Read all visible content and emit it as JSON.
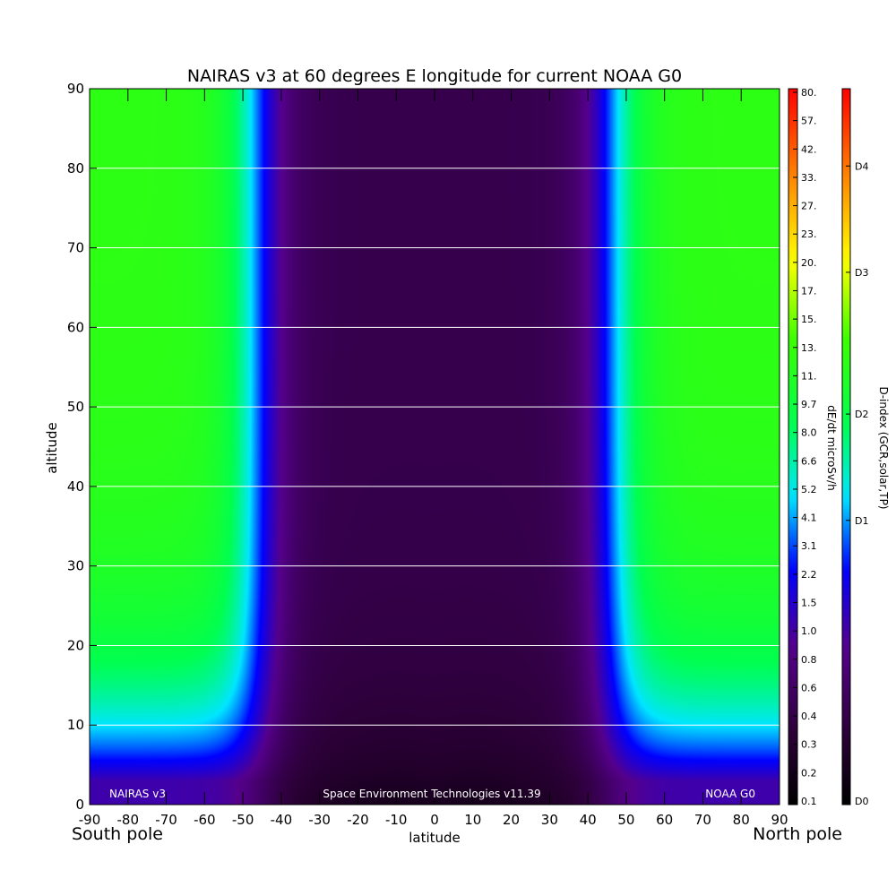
{
  "chart_data": {
    "type": "heatmap",
    "title": "NAIRAS v3 at 60 degrees E longitude for current NOAA G0",
    "xlabel": "latitude",
    "ylabel": "altitude",
    "xlim": [
      -90,
      90
    ],
    "ylim": [
      0,
      90
    ],
    "x_ticks": [
      "-90",
      "-80",
      "-70",
      "-60",
      "-50",
      "-40",
      "-30",
      "-20",
      "-10",
      "0",
      "10",
      "20",
      "30",
      "40",
      "50",
      "60",
      "70",
      "80",
      "90"
    ],
    "y_ticks": [
      "0",
      "10",
      "20",
      "30",
      "40",
      "50",
      "60",
      "70",
      "80",
      "90"
    ],
    "x_tick_values": [
      -90,
      -80,
      -70,
      -60,
      -50,
      -40,
      -30,
      -20,
      -10,
      0,
      10,
      20,
      30,
      40,
      50,
      60,
      70,
      80,
      90
    ],
    "y_tick_values": [
      0,
      10,
      20,
      30,
      40,
      50,
      60,
      70,
      80,
      90
    ],
    "horizontal_gridlines_at": [
      10,
      20,
      30,
      40,
      50,
      60,
      70,
      80
    ],
    "pole_labels": {
      "left": "South pole",
      "right": "North pole"
    },
    "annotations": {
      "left": "NAIRAS v3",
      "center": "Space Environment Technologies v11.39",
      "right": "NOAA G0"
    },
    "colorbar_dose": {
      "label": "dE/dt microSv/h",
      "ticks": [
        "0.1",
        "0.2",
        "0.3",
        "0.4",
        "0.6",
        "0.8",
        "1.0",
        "1.5",
        "2.2",
        "3.1",
        "4.1",
        "5.2",
        "6.6",
        "8.0",
        "9.7",
        "11.",
        "13.",
        "15.",
        "17.",
        "20.",
        "23.",
        "27.",
        "33.",
        "42.",
        "57.",
        "80."
      ]
    },
    "colorbar_dindex": {
      "label": "D-index (GCR,solar,TP)",
      "ticks": [
        {
          "label": "D0",
          "frac": 0.0
        },
        {
          "label": "D1",
          "frac": 0.396
        },
        {
          "label": "D2",
          "frac": 0.546
        },
        {
          "label": "D3",
          "frac": 0.746
        },
        {
          "label": "D4",
          "frac": 0.896
        }
      ]
    },
    "field_description": {
      "cutoff_latitude_deg": 46,
      "peak_dose_high_latitude_microSv_per_h": 13,
      "min_dose_equator_low_altitude_microSv_per_h": 0.1
    }
  }
}
